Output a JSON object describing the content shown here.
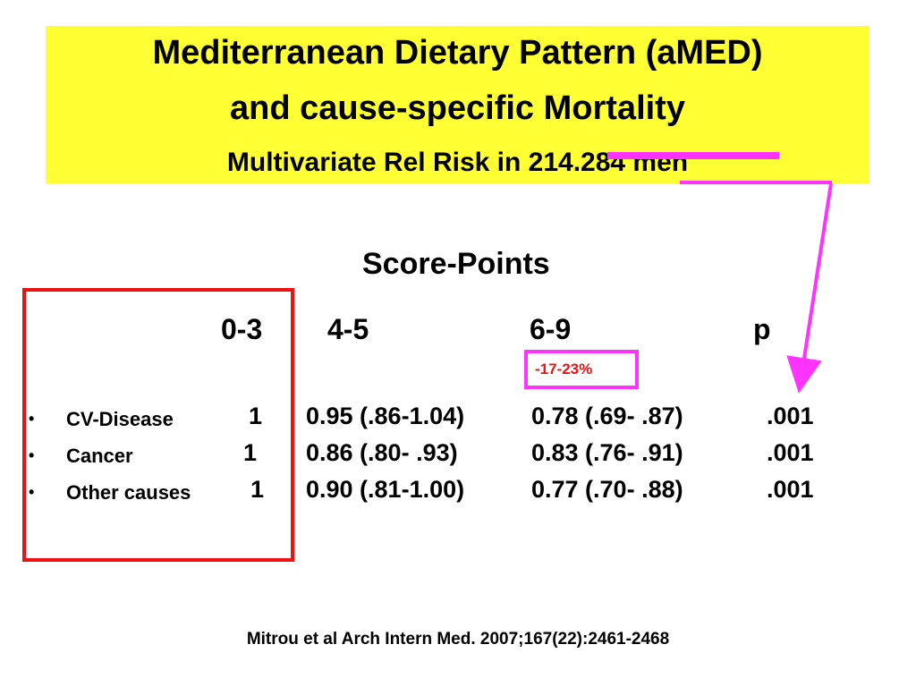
{
  "title": {
    "line1": "Mediterranean Dietary Pattern (aMED)",
    "line2": "and cause-specific Mortality",
    "subtitle": "Multivariate Rel Risk in 214.284  men"
  },
  "table": {
    "heading": "Score-Points",
    "columns": [
      "0-3",
      "4-5",
      "6-9",
      "p"
    ],
    "highlight": "-17-23%",
    "bullet": "•",
    "rows": [
      {
        "label": "CV-Disease",
        "ref": "1",
        "mid": "0.95 (.86-1.04)",
        "high": "0.78 (.69- .87)",
        "p": ".001"
      },
      {
        "label": "Cancer",
        "ref": "1",
        "mid": "0.86 (.80- .93)",
        "high": "0.83 (.76- .91)",
        "p": ".001"
      },
      {
        "label": "Other causes",
        "ref": "1",
        "mid": "0.90 (.81-1.00)",
        "high": "0.77 (.70- .88)",
        "p": ".001"
      }
    ]
  },
  "citation": "Mitrou et al Arch Intern Med. 2007;167(22):2461-2468",
  "colors": {
    "title_background": "#ffff33",
    "annotation_magenta": "#ff33ff",
    "annotation_red": "#ee1111"
  }
}
